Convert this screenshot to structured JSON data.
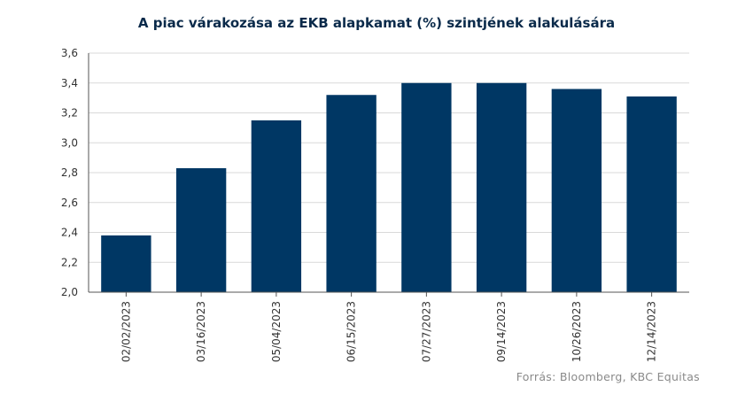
{
  "chart_data": {
    "type": "bar",
    "title": "A piac várakozása az EKB alapkamat (%) szintjének alakulására",
    "categories": [
      "02/02/2023",
      "03/16/2023",
      "05/04/2023",
      "06/15/2023",
      "07/27/2023",
      "09/14/2023",
      "10/26/2023",
      "12/14/2023"
    ],
    "values": [
      2.38,
      2.83,
      3.15,
      3.32,
      3.4,
      3.4,
      3.36,
      3.31
    ],
    "ylim": [
      2.0,
      3.6
    ],
    "yticks": [
      "2,0",
      "2,2",
      "2,4",
      "2,6",
      "2,8",
      "3,0",
      "3,2",
      "3,4",
      "3,6"
    ],
    "xlabel": "",
    "ylabel": "",
    "grid": true,
    "bar_color": "#003764"
  },
  "source": "Forrás: Bloomberg,  KBC Equitas"
}
